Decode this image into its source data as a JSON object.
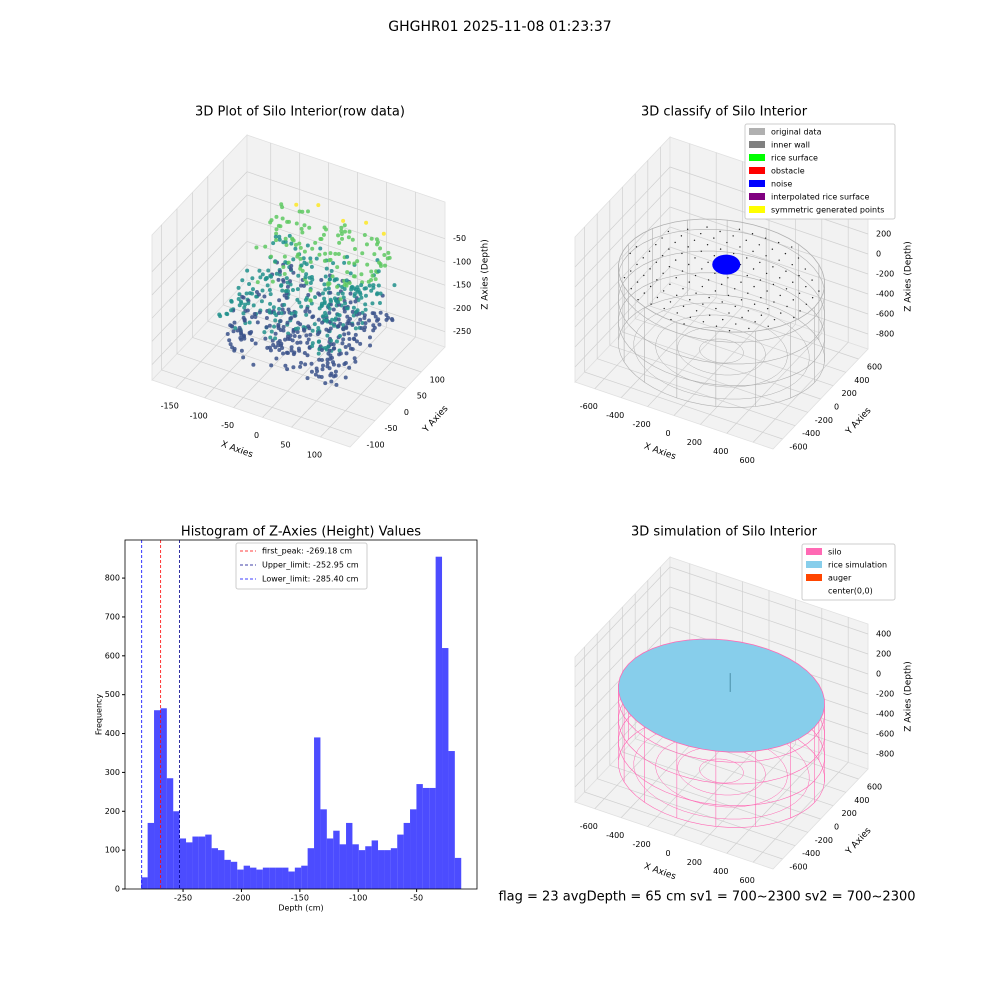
{
  "suptitle": "GHGHR01 2025-11-08 01:23:37",
  "footer": "flag = 23  avgDepth = 65 cm    sv1 = 700~2300  sv2 = 700~2300",
  "chart_data": [
    {
      "type": "scatter3d",
      "title": "3D Plot of Silo Interior(row data)",
      "xlabel": "X Axies",
      "ylabel": "Y Axies",
      "zlabel": "Z Axies (Depth)",
      "xlim": [
        -191,
        151
      ],
      "ylim": [
        -131,
        177
      ],
      "zlim": [
        -283,
        29
      ],
      "xticks": [
        -150,
        -100,
        -50,
        0,
        50,
        100
      ],
      "yticks": [
        -100,
        -50,
        0,
        50,
        100
      ],
      "zticks": [
        -250,
        -200,
        -150,
        -100,
        -50
      ]
    },
    {
      "type": "classify3d",
      "title": "3D classify of Silo Interior",
      "xlabel": "X Axies",
      "ylabel": "Y Axies",
      "zlabel": "Z Axies (Depth)",
      "xlim": [
        -750,
        750
      ],
      "ylim": [
        -750,
        750
      ],
      "zlim": [
        -950,
        500
      ],
      "xticks": [
        -600,
        -400,
        -200,
        0,
        200,
        400,
        600
      ],
      "yticks": [
        -600,
        -400,
        -200,
        0,
        200,
        400,
        600
      ],
      "zticks": [
        -800,
        -600,
        -400,
        -200,
        0,
        200
      ],
      "legend": "upper right",
      "series": [
        {
          "name": "original data",
          "color": "#b0b0b0"
        },
        {
          "name": "inner wall",
          "color": "#808080"
        },
        {
          "name": "rice surface",
          "color": "#00ff00"
        },
        {
          "name": "obstacle",
          "color": "#ff0000"
        },
        {
          "name": "noise",
          "color": "#0000ff"
        },
        {
          "name": "interpolated rice surface",
          "color": "#800080"
        },
        {
          "name": "symmetric generated points",
          "color": "#ffff00"
        }
      ]
    },
    {
      "type": "histogram",
      "title": "Histogram of Z-Axies (Height) Values",
      "xlabel": "Depth (cm)",
      "ylabel": "Frequency",
      "color": "#0000ff",
      "bins": [
        -285.8,
        -280.32,
        -274.84,
        -269.36,
        -263.88,
        -258.4,
        -252.92,
        -247.44,
        -241.96,
        -236.48,
        -231.0,
        -225.52,
        -220.04,
        -214.56,
        -209.08,
        -203.6,
        -198.12,
        -192.64,
        -187.16,
        -181.68,
        -176.2,
        -170.72,
        -165.24,
        -159.76,
        -154.28,
        -148.8,
        -143.32,
        -137.84,
        -132.36,
        -126.88,
        -121.4,
        -115.92,
        -110.44,
        -104.96,
        -99.48,
        -94.0,
        -88.52,
        -83.04,
        -77.56,
        -72.08,
        -66.6,
        -61.12,
        -55.64,
        -50.16,
        -44.68,
        -39.2,
        -33.72,
        -28.24,
        -22.76,
        -17.28,
        -11.8
      ],
      "values": [
        30,
        170,
        460,
        465,
        285,
        200,
        130,
        120,
        135,
        135,
        140,
        105,
        100,
        75,
        70,
        50,
        60,
        55,
        50,
        55,
        55,
        55,
        55,
        45,
        55,
        60,
        105,
        390,
        205,
        130,
        150,
        115,
        170,
        115,
        100,
        110,
        125,
        100,
        100,
        105,
        140,
        170,
        205,
        270,
        260,
        260,
        855,
        620,
        355,
        80
      ],
      "xlim": [
        -299.7,
        1.7
      ],
      "ylim": [
        0,
        898
      ],
      "xticks": [
        -250,
        -200,
        -150,
        -100,
        -50
      ],
      "yticks": [
        0,
        100,
        200,
        300,
        400,
        500,
        600,
        700,
        800
      ],
      "legend": "upper center",
      "lines": [
        {
          "label": "first_peak: -269.18 cm",
          "value": -269.18,
          "color": "#ff0000"
        },
        {
          "label": "Upper_limit: -252.95 cm",
          "value": -252.95,
          "color": "#00008b"
        },
        {
          "label": "Lower_limit: -285.40 cm",
          "value": -285.4,
          "color": "#0000ff"
        }
      ]
    },
    {
      "type": "simulation3d",
      "title": "3D simulation of Silo Interior",
      "xlabel": "X Axies",
      "ylabel": "Y Axies",
      "zlabel": "Z Axies (Depth)",
      "xlim": [
        -750,
        750
      ],
      "ylim": [
        -750,
        750
      ],
      "zlim": [
        -950,
        500
      ],
      "xticks": [
        -600,
        -400,
        -200,
        0,
        200,
        400,
        600
      ],
      "yticks": [
        -600,
        -400,
        -200,
        0,
        200,
        400,
        600
      ],
      "zticks": [
        -800,
        -600,
        -400,
        -200,
        0,
        200,
        400
      ],
      "legend": "upper right",
      "series": [
        {
          "name": "silo",
          "color": "#ff69b4"
        },
        {
          "name": "rice simulation",
          "color": "#87ceeb"
        },
        {
          "name": "auger",
          "color": "#ff4500"
        },
        {
          "name": "center(0,0)",
          "color": "#ffffff"
        }
      ]
    }
  ]
}
